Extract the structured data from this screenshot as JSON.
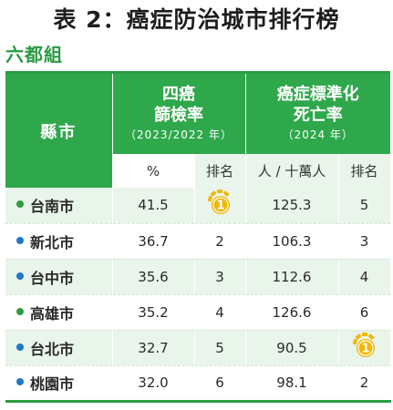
{
  "title": "表 2：癌症防治城市排行榜",
  "group_label": "六都組",
  "table": {
    "head": {
      "city_label": "縣市",
      "screening_title_1": "四癌",
      "screening_title_2": "篩檢率",
      "screening_period": "（2023/2022 年）",
      "mortality_title_1": "癌症標準化",
      "mortality_title_2": "死亡率",
      "mortality_period": "（2024 年）"
    },
    "subhead": {
      "screening_unit": "%",
      "screening_rank": "排名",
      "mortality_unit": "人 / 十萬人",
      "mortality_rank": "排名"
    },
    "rows": [
      {
        "city": "台南市",
        "dot_color": "#2e9b3f",
        "screening_rate": "41.5",
        "screening_rank": "1",
        "screening_rank_medal": true,
        "mortality_rate": "125.3",
        "mortality_rank": "5",
        "mortality_rank_medal": false
      },
      {
        "city": "新北市",
        "dot_color": "#1f78c8",
        "screening_rate": "36.7",
        "screening_rank": "2",
        "screening_rank_medal": false,
        "mortality_rate": "106.3",
        "mortality_rank": "3",
        "mortality_rank_medal": false
      },
      {
        "city": "台中市",
        "dot_color": "#1f78c8",
        "screening_rate": "35.6",
        "screening_rank": "3",
        "screening_rank_medal": false,
        "mortality_rate": "112.6",
        "mortality_rank": "4",
        "mortality_rank_medal": false
      },
      {
        "city": "高雄市",
        "dot_color": "#2e9b3f",
        "screening_rate": "35.2",
        "screening_rank": "4",
        "screening_rank_medal": false,
        "mortality_rate": "126.6",
        "mortality_rank": "6",
        "mortality_rank_medal": false
      },
      {
        "city": "台北市",
        "dot_color": "#1f78c8",
        "screening_rate": "32.7",
        "screening_rank": "5",
        "screening_rank_medal": false,
        "mortality_rate": "90.5",
        "mortality_rank": "1",
        "mortality_rank_medal": true
      },
      {
        "city": "桃園市",
        "dot_color": "#1f78c8",
        "screening_rate": "32.0",
        "screening_rank": "6",
        "screening_rank_medal": false,
        "mortality_rate": "98.1",
        "mortality_rank": "2",
        "mortality_rank_medal": false
      }
    ]
  },
  "colors": {
    "accent_green": "#2ea84b",
    "row_shade": "#e9f4ea",
    "medal_gold": "#f2b705"
  }
}
